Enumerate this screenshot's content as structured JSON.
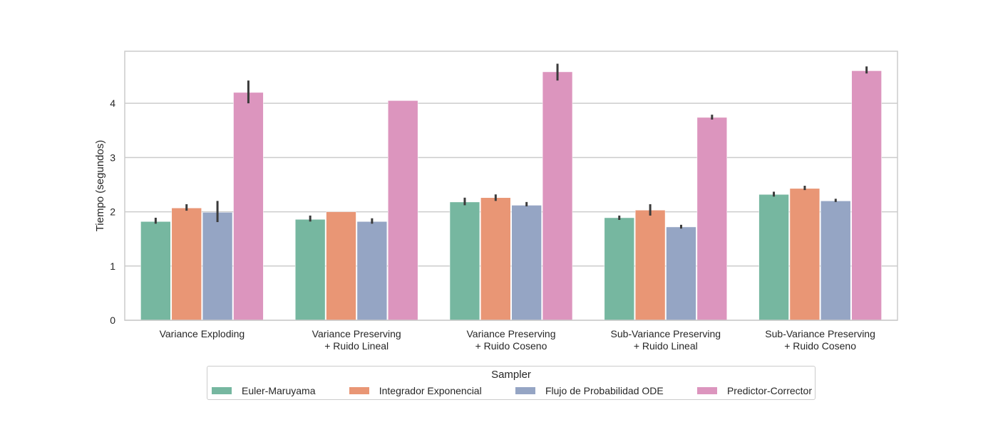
{
  "chart_data": {
    "type": "bar",
    "title": "",
    "xlabel": "",
    "ylabel": "Tiempo (segundos)",
    "ylim": [
      0,
      4.96
    ],
    "yticks": [
      0,
      1,
      2,
      3,
      4
    ],
    "grid": true,
    "categories": [
      [
        "Variance Exploding"
      ],
      [
        "Variance Preserving",
        "+ Ruido Lineal"
      ],
      [
        "Variance Preserving",
        "+ Ruido Coseno"
      ],
      [
        "Sub-Variance Preserving",
        "+ Ruido Lineal"
      ],
      [
        "Sub-Variance Preserving",
        "+ Ruido Coseno"
      ]
    ],
    "legend": {
      "title": "Sampler",
      "placement": "bottom-center"
    },
    "series": [
      {
        "name": "Euler-Maruyama",
        "color": "#76b7a0",
        "values": [
          1.82,
          1.86,
          2.18,
          1.89,
          2.32
        ],
        "err_low": [
          1.78,
          1.82,
          2.12,
          1.85,
          2.28
        ],
        "err_high": [
          1.89,
          1.93,
          2.26,
          1.93,
          2.37
        ]
      },
      {
        "name": "Integrador Exponencial",
        "color": "#e99675",
        "values": [
          2.07,
          2.0,
          2.26,
          2.03,
          2.43
        ],
        "err_low": [
          2.02,
          2.0,
          2.2,
          1.93,
          2.4
        ],
        "err_high": [
          2.14,
          2.0,
          2.32,
          2.14,
          2.48
        ]
      },
      {
        "name": "Flujo de Probabilidad ODE",
        "color": "#95a5c4",
        "values": [
          1.99,
          1.82,
          2.12,
          1.72,
          2.2
        ],
        "err_low": [
          1.81,
          1.78,
          2.1,
          1.69,
          2.18
        ],
        "err_high": [
          2.2,
          1.88,
          2.18,
          1.76,
          2.24
        ]
      },
      {
        "name": "Predictor-Corrector",
        "color": "#dc95be",
        "values": [
          4.2,
          4.05,
          4.58,
          3.74,
          4.6
        ],
        "err_low": [
          4.0,
          4.05,
          4.42,
          3.7,
          4.55
        ],
        "err_high": [
          4.42,
          4.05,
          4.73,
          3.79,
          4.68
        ]
      }
    ]
  }
}
